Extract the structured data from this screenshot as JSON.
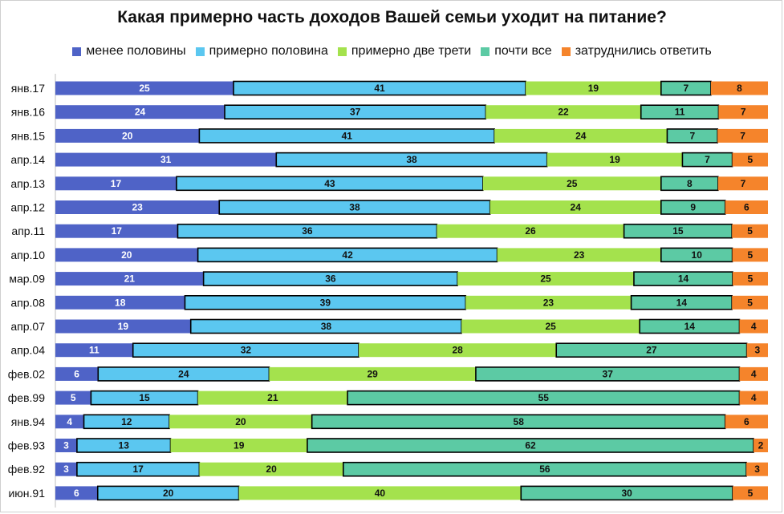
{
  "chart_data": {
    "type": "bar",
    "orientation": "horizontal",
    "stacked": true,
    "title": "Какая примерно часть доходов Вашей семьи уходит на питание?",
    "legend_position": "top",
    "categories": [
      "янв.17",
      "янв.16",
      "янв.15",
      "апр.14",
      "апр.13",
      "апр.12",
      "апр.11",
      "апр.10",
      "мар.09",
      "апр.08",
      "апр.07",
      "апр.04",
      "фев.02",
      "фев.99",
      "янв.94",
      "фев.93",
      "фев.92",
      "июн.91"
    ],
    "series": [
      {
        "name": "менее половины",
        "color": "#4f63c7",
        "label_color": "#ffffff",
        "values": [
          25,
          24,
          20,
          31,
          17,
          23,
          17,
          20,
          21,
          18,
          19,
          11,
          6,
          5,
          4,
          3,
          3,
          6
        ]
      },
      {
        "name": "примерно половина",
        "color": "#5bc7f0",
        "label_color": "#111111",
        "values": [
          41,
          37,
          41,
          38,
          43,
          38,
          36,
          42,
          36,
          39,
          38,
          32,
          24,
          15,
          12,
          13,
          17,
          20
        ]
      },
      {
        "name": "примерно две трети",
        "color": "#a4e24d",
        "label_color": "#111111",
        "values": [
          19,
          22,
          24,
          19,
          25,
          24,
          26,
          23,
          25,
          23,
          25,
          28,
          29,
          21,
          20,
          19,
          20,
          40
        ]
      },
      {
        "name": "почти все",
        "color": "#5ccaa4",
        "label_color": "#111111",
        "values": [
          7,
          11,
          7,
          7,
          8,
          9,
          15,
          10,
          14,
          14,
          14,
          27,
          37,
          55,
          58,
          62,
          56,
          30
        ]
      },
      {
        "name": "затруднились ответить",
        "color": "#f5842b",
        "label_color": "#111111",
        "values": [
          8,
          7,
          7,
          5,
          7,
          6,
          5,
          5,
          5,
          5,
          4,
          3,
          4,
          4,
          6,
          2,
          3,
          5
        ]
      }
    ]
  }
}
